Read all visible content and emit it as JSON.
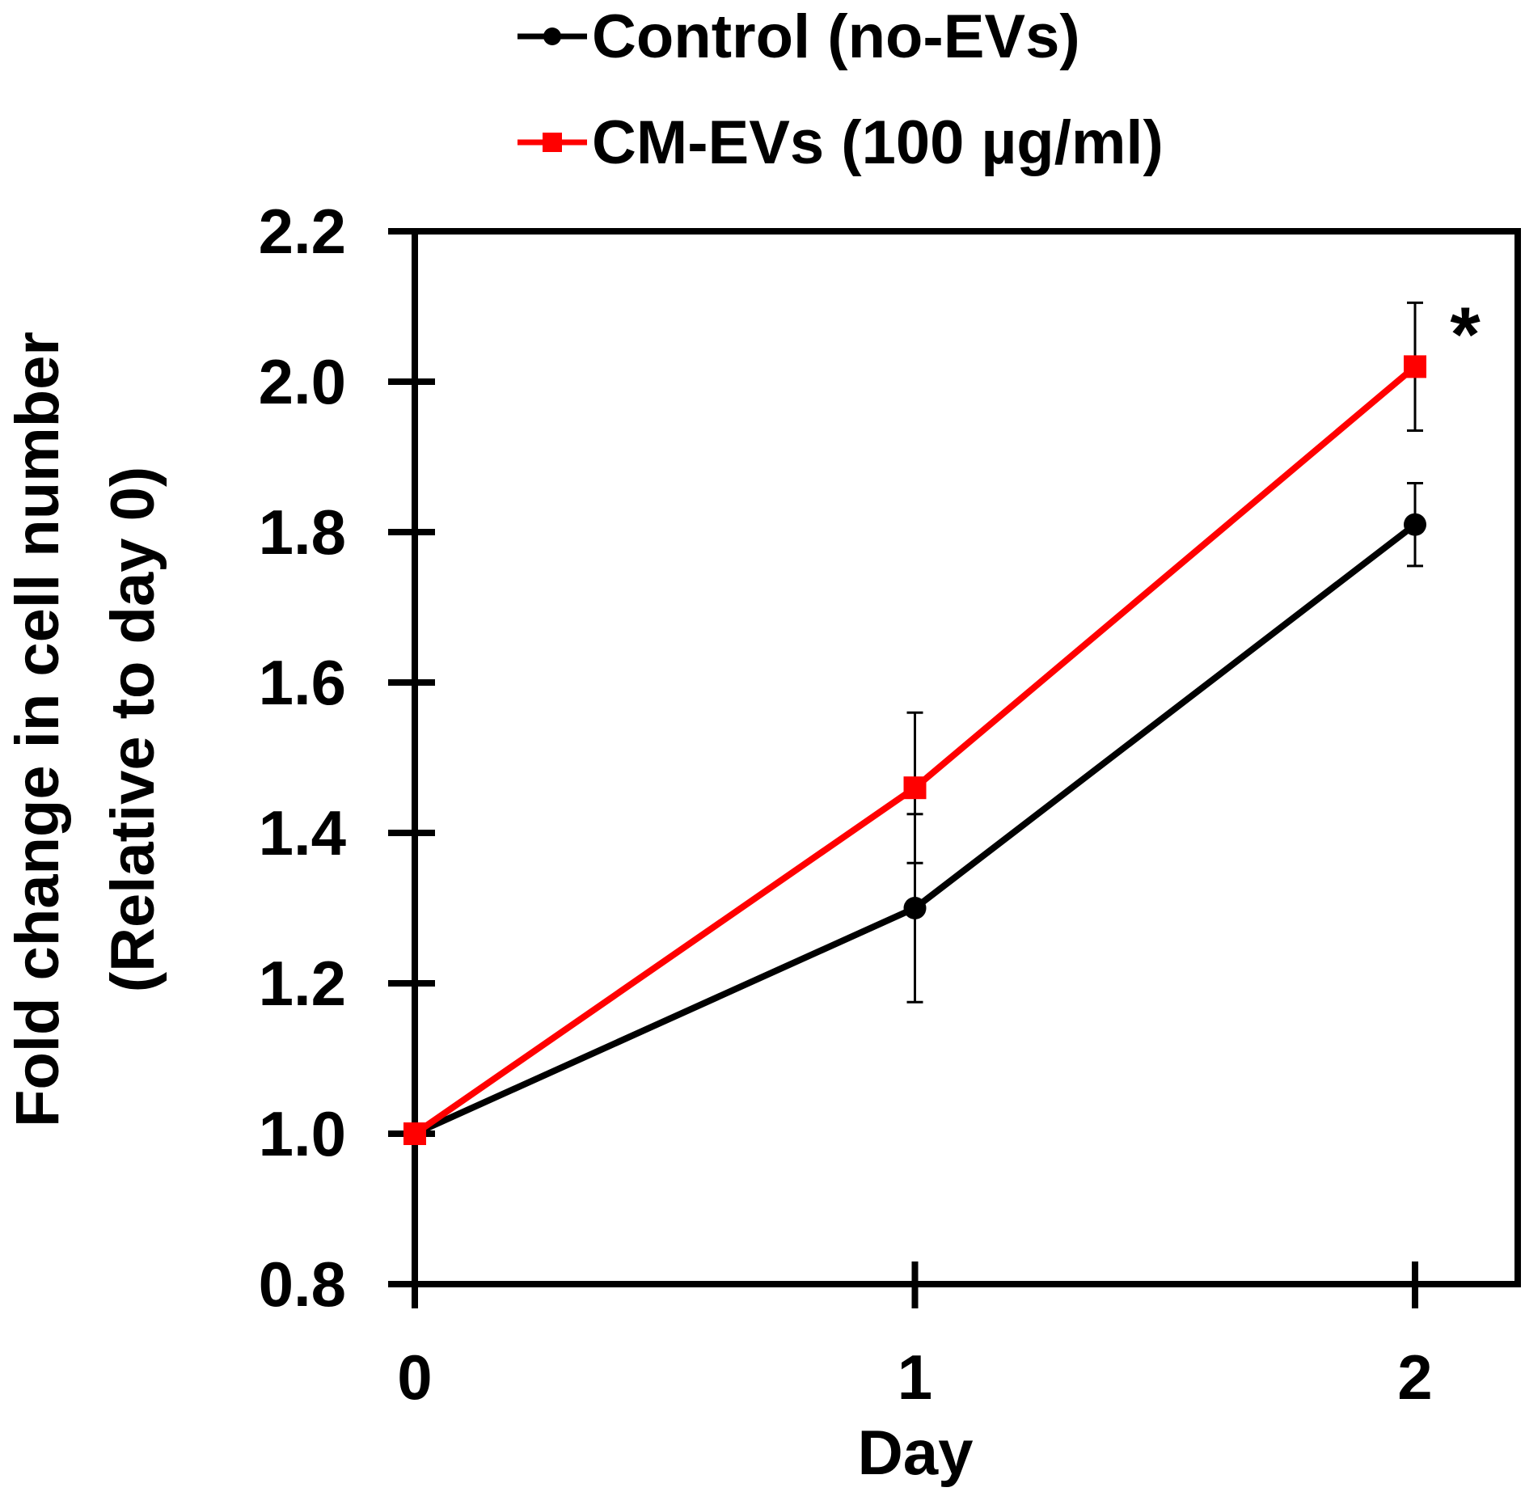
{
  "chart_data": {
    "type": "line",
    "title": "",
    "xlabel": "Day",
    "ylabel": "Fold change in cell number\n(Relative to day 0)",
    "ylabel_lines": [
      "Fold change in cell number",
      "(Relative to day 0)"
    ],
    "x": [
      0,
      1,
      2
    ],
    "xticks": [
      "0",
      "1",
      "2"
    ],
    "xlim": [
      0,
      2.2
    ],
    "ylim": [
      0.8,
      2.2
    ],
    "yticks": [
      "0.8",
      "1.0",
      "1.2",
      "1.4",
      "1.6",
      "1.8",
      "2.0",
      "2.2"
    ],
    "grid": false,
    "legend_position": "top",
    "series": [
      {
        "name": "Control (no-EVs)",
        "color": "#000000",
        "marker": "circle",
        "values": [
          1.0,
          1.3,
          1.81
        ],
        "errors": [
          0,
          0.125,
          0.055
        ]
      },
      {
        "name": "CM-EVs (100 µg/ml)",
        "color": "#ff0000",
        "marker": "square",
        "values": [
          1.0,
          1.46,
          2.02
        ],
        "errors": [
          0,
          0.1,
          0.085
        ]
      }
    ],
    "annotations": [
      {
        "text": "*",
        "x": 2,
        "series": 1
      }
    ]
  }
}
